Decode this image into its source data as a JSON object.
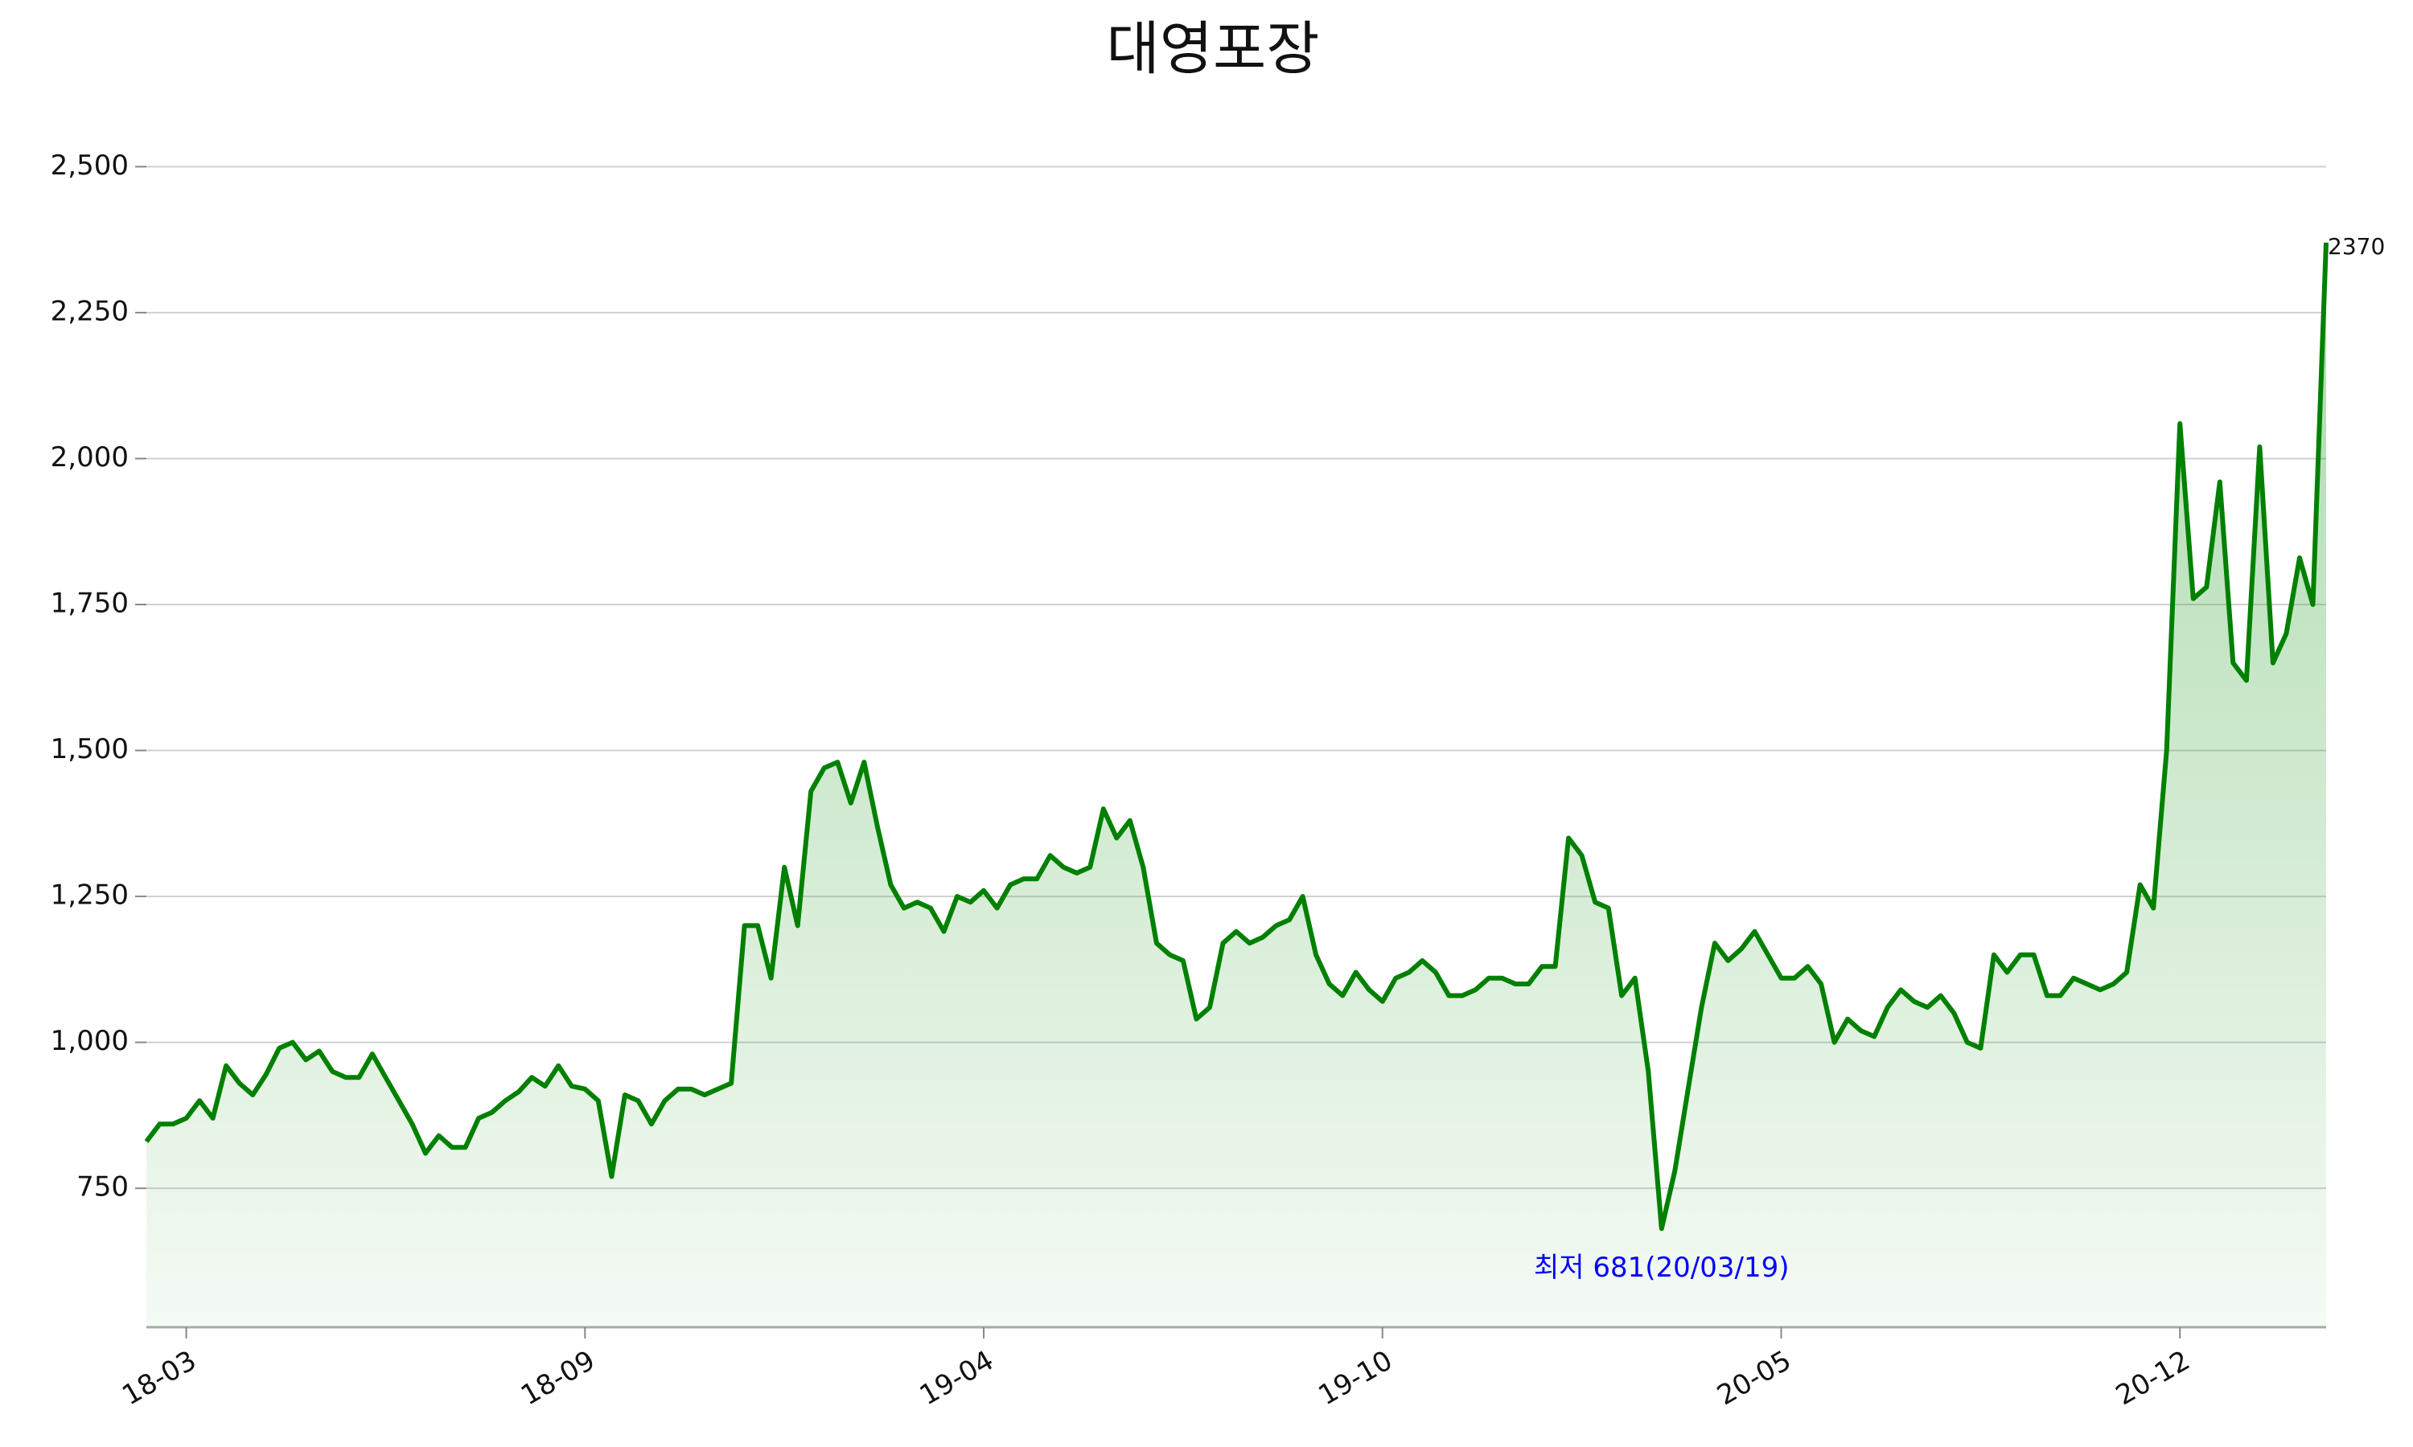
{
  "chart_data": {
    "type": "line",
    "title": "대영포장",
    "categories": [
      null,
      null,
      null,
      "18-03",
      null,
      null,
      null,
      null,
      null,
      null,
      null,
      null,
      null,
      null,
      null,
      null,
      null,
      null,
      null,
      null,
      null,
      null,
      null,
      null,
      null,
      null,
      null,
      null,
      null,
      null,
      null,
      null,
      null,
      "18-09",
      null,
      null,
      null,
      null,
      null,
      null,
      null,
      null,
      null,
      null,
      null,
      null,
      null,
      null,
      null,
      null,
      null,
      null,
      null,
      null,
      null,
      null,
      null,
      null,
      null,
      null,
      null,
      null,
      null,
      "19-04",
      null,
      null,
      null,
      null,
      null,
      null,
      null,
      null,
      null,
      null,
      null,
      null,
      null,
      null,
      null,
      null,
      null,
      null,
      null,
      null,
      null,
      null,
      null,
      null,
      null,
      null,
      null,
      null,
      null,
      "19-10",
      null,
      null,
      null,
      null,
      null,
      null,
      null,
      null,
      null,
      null,
      null,
      null,
      null,
      null,
      null,
      null,
      null,
      null,
      null,
      null,
      null,
      null,
      null,
      null,
      null,
      null,
      null,
      null,
      null,
      "20-05",
      null,
      null,
      null,
      null,
      null,
      null,
      null,
      null,
      null,
      null,
      null,
      null,
      null,
      null,
      null,
      null,
      null,
      null,
      null,
      null,
      null,
      null,
      null,
      null,
      null,
      null,
      null,
      null,
      null,
      "20-12",
      null,
      null,
      null,
      null,
      null,
      null,
      null,
      null,
      null,
      null,
      null
    ],
    "series": [
      {
        "color": "#008000",
        "values": [
          830,
          860,
          860,
          870,
          900,
          870,
          960,
          930,
          910,
          945,
          990,
          1000,
          970,
          985,
          950,
          940,
          940,
          980,
          940,
          900,
          860,
          810,
          840,
          820,
          820,
          870,
          880,
          900,
          915,
          940,
          925,
          960,
          925,
          920,
          900,
          770,
          910,
          900,
          860,
          900,
          920,
          920,
          910,
          920,
          930,
          1200,
          1200,
          1110,
          1300,
          1200,
          1430,
          1470,
          1480,
          1410,
          1480,
          1370,
          1270,
          1230,
          1240,
          1230,
          1190,
          1250,
          1240,
          1260,
          1230,
          1270,
          1280,
          1280,
          1320,
          1300,
          1290,
          1300,
          1400,
          1350,
          1380,
          1300,
          1170,
          1150,
          1140,
          1040,
          1060,
          1170,
          1190,
          1170,
          1180,
          1200,
          1210,
          1250,
          1150,
          1100,
          1080,
          1120,
          1090,
          1070,
          1110,
          1120,
          1140,
          1120,
          1080,
          1080,
          1090,
          1110,
          1110,
          1100,
          1100,
          1130,
          1130,
          1350,
          1320,
          1240,
          1230,
          1080,
          1110,
          950,
          681,
          780,
          920,
          1060,
          1170,
          1140,
          1160,
          1190,
          1150,
          1110,
          1110,
          1130,
          1100,
          1000,
          1040,
          1020,
          1010,
          1060,
          1090,
          1070,
          1060,
          1080,
          1050,
          1000,
          990,
          1150,
          1120,
          1150,
          1150,
          1080,
          1080,
          1110,
          1100,
          1090,
          1100,
          1120,
          1270,
          1230,
          1500,
          2060,
          1760,
          1780,
          1960,
          1650,
          1620,
          2020,
          1650,
          1700,
          1830,
          1750,
          2370
        ]
      }
    ],
    "ylim": [
      512,
      2590
    ],
    "yticks": [
      750,
      {
        "value": 1000,
        "label": "1,000"
      },
      {
        "value": 1250,
        "label": "1,250"
      },
      {
        "value": 1500,
        "label": "1,500"
      },
      {
        "value": 1750,
        "label": "1,750"
      },
      {
        "value": 2000,
        "label": "2,000"
      },
      {
        "value": 2250,
        "label": "2,250"
      },
      {
        "value": 2500,
        "label": "2,500"
      }
    ],
    "grid": true,
    "annotations": [
      {
        "text": "최저 681(20/03/19)",
        "color": "#0000ff"
      }
    ]
  }
}
